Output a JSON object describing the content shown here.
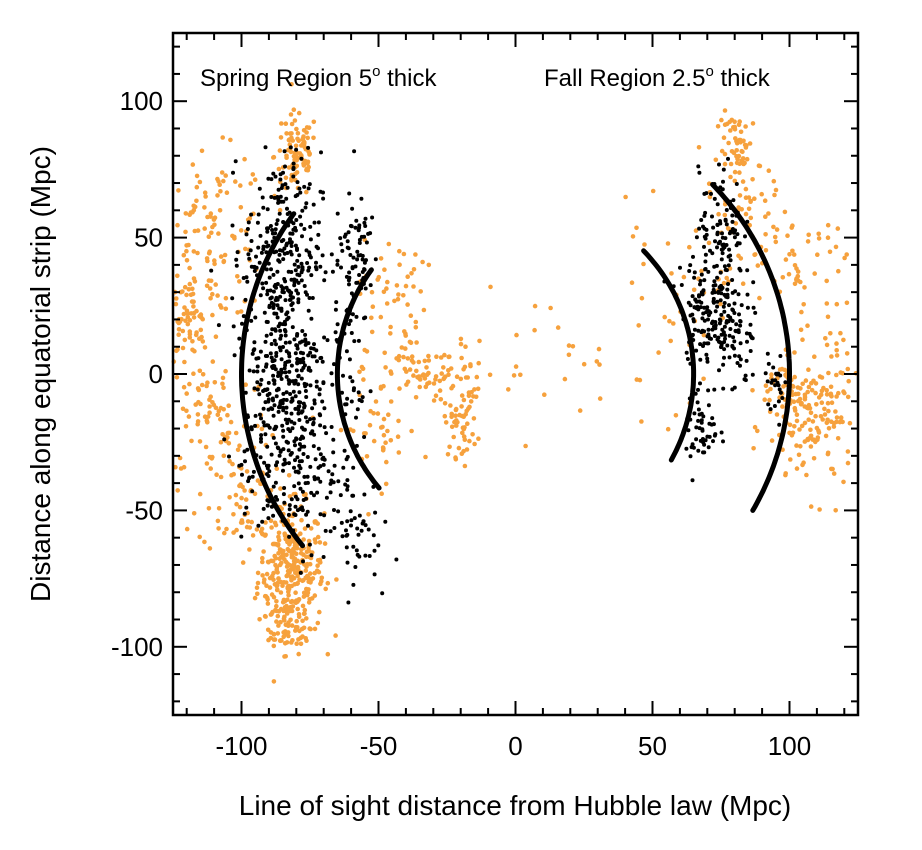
{
  "chart_data": {
    "type": "scatter",
    "title": "",
    "xlabel": "Line of sight distance from Hubble law (Mpc)",
    "ylabel": "Distance along equatorial strip (Mpc)",
    "xlim": [
      -125,
      125
    ],
    "ylim": [
      -125,
      125
    ],
    "xticks": [
      -100,
      -50,
      0,
      50,
      100
    ],
    "yticks": [
      -100,
      -50,
      0,
      50,
      100
    ],
    "xtick_labels": [
      "-100",
      "-50",
      "0",
      "50",
      "100"
    ],
    "ytick_labels": [
      "-100",
      "-50",
      "0",
      "50",
      "100"
    ],
    "grid": false,
    "annotations": [
      {
        "text": "Spring Region 5",
        "sup": "o",
        "after": " thick",
        "x": -115,
        "y": 108
      },
      {
        "text": "Fall Region 2.5",
        "sup": "o",
        "after": " thick",
        "x": 10,
        "y": 108
      }
    ],
    "arcs": [
      {
        "radius": 100,
        "theta_deg": [
          -126,
          -124
        ],
        "color": "#000000"
      },
      {
        "radius": 65,
        "theta_deg": [
          -125,
          -125
        ],
        "color": "#000000"
      },
      {
        "radius": 100,
        "theta_deg": [
          -45,
          58
        ],
        "color": "#000000",
        "note": "fall outer"
      },
      {
        "radius": 65,
        "theta_deg": [
          -29,
          44
        ],
        "color": "#000000",
        "note": "fall inner"
      }
    ],
    "series": [
      {
        "role": "all-galaxies",
        "color": "#f6a13d",
        "clusters": [
          {
            "cx": -82,
            "cy": -72,
            "sx": 6,
            "sy": 12,
            "n": 320
          },
          {
            "cx": -80,
            "cy": 80,
            "sx": 4,
            "sy": 8,
            "n": 90
          },
          {
            "cx": -110,
            "cy": 50,
            "sx": 10,
            "sy": 15,
            "n": 120
          },
          {
            "cx": -120,
            "cy": 18,
            "sx": 4,
            "sy": 8,
            "n": 60
          },
          {
            "cx": -110,
            "cy": -15,
            "sx": 10,
            "sy": 12,
            "n": 80
          },
          {
            "cx": -100,
            "cy": -45,
            "sx": 8,
            "sy": 10,
            "n": 70
          },
          {
            "cx": -85,
            "cy": -95,
            "sx": 5,
            "sy": 4,
            "n": 40
          },
          {
            "cx": -45,
            "cy": 30,
            "sx": 6,
            "sy": 10,
            "n": 50
          },
          {
            "cx": -30,
            "cy": 0,
            "sx": 12,
            "sy": 6,
            "n": 90
          },
          {
            "cx": -20,
            "cy": -18,
            "sx": 3,
            "sy": 6,
            "n": 50
          },
          {
            "cx": -50,
            "cy": -20,
            "sx": 8,
            "sy": 10,
            "n": 40
          },
          {
            "cx": 10,
            "cy": 5,
            "sx": 12,
            "sy": 12,
            "n": 20
          },
          {
            "cx": 82,
            "cy": 82,
            "sx": 4,
            "sy": 7,
            "n": 60
          },
          {
            "cx": 85,
            "cy": 55,
            "sx": 8,
            "sy": 10,
            "n": 60
          },
          {
            "cx": 105,
            "cy": 40,
            "sx": 8,
            "sy": 10,
            "n": 40
          },
          {
            "cx": 108,
            "cy": -20,
            "sx": 8,
            "sy": 12,
            "n": 120
          },
          {
            "cx": 100,
            "cy": -5,
            "sx": 6,
            "sy": 5,
            "n": 50
          },
          {
            "cx": 55,
            "cy": 20,
            "sx": 10,
            "sy": 18,
            "n": 40
          },
          {
            "cx": 115,
            "cy": 5,
            "sx": 6,
            "sy": 15,
            "n": 40
          }
        ]
      },
      {
        "role": "selected-galaxies",
        "color": "#000000",
        "clusters": [
          {
            "cx": -85,
            "cy": 45,
            "sx": 7,
            "sy": 18,
            "n": 260
          },
          {
            "cx": -84,
            "cy": 0,
            "sx": 8,
            "sy": 18,
            "n": 300
          },
          {
            "cx": -80,
            "cy": -35,
            "sx": 10,
            "sy": 15,
            "n": 180
          },
          {
            "cx": -60,
            "cy": -60,
            "sx": 5,
            "sy": 8,
            "n": 40
          },
          {
            "cx": -58,
            "cy": 45,
            "sx": 4,
            "sy": 10,
            "n": 60
          },
          {
            "cx": -60,
            "cy": 10,
            "sx": 3,
            "sy": 20,
            "n": 50
          },
          {
            "cx": 75,
            "cy": 55,
            "sx": 4,
            "sy": 10,
            "n": 80
          },
          {
            "cx": 72,
            "cy": 25,
            "sx": 6,
            "sy": 10,
            "n": 180
          },
          {
            "cx": 80,
            "cy": 10,
            "sx": 4,
            "sy": 8,
            "n": 40
          },
          {
            "cx": 68,
            "cy": -20,
            "sx": 3,
            "sy": 8,
            "n": 50
          },
          {
            "cx": 95,
            "cy": -3,
            "sx": 2,
            "sy": 5,
            "n": 25
          }
        ]
      }
    ]
  }
}
